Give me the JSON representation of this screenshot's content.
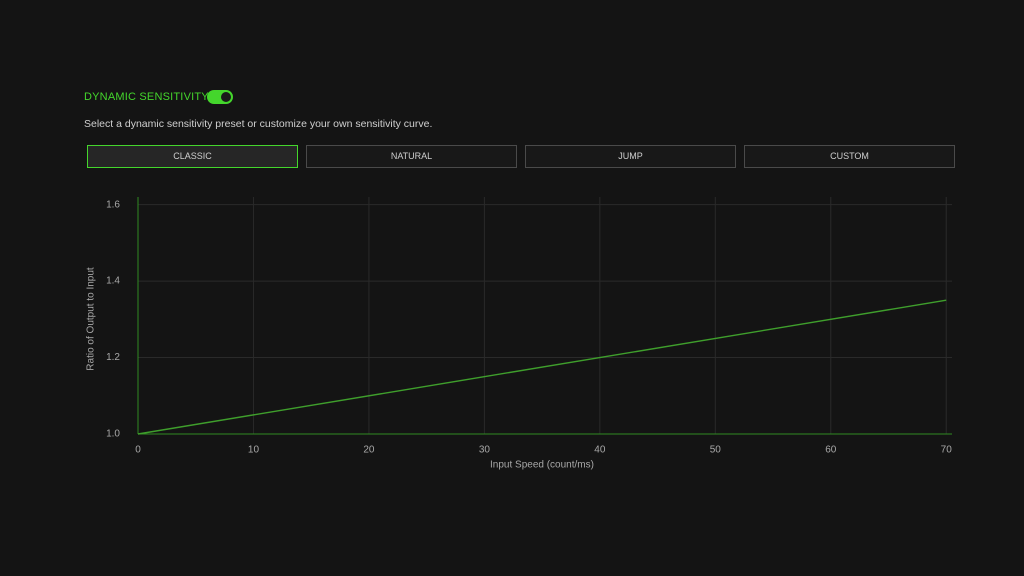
{
  "header": {
    "title": "DYNAMIC SENSITIVITY",
    "toggle_on": true
  },
  "description": "Select a dynamic sensitivity preset or customize your own sensitivity curve.",
  "presets": {
    "options": [
      "CLASSIC",
      "NATURAL",
      "JUMP",
      "CUSTOM"
    ],
    "selected": 0
  },
  "chart_data": {
    "type": "line",
    "x_label": "Input Speed (count/ms)",
    "y_label": "Ratio of Output to Input",
    "x": [
      0,
      70
    ],
    "values": [
      1.0,
      1.35
    ],
    "color": "#3f9f2c",
    "xlim": [
      0,
      70.5
    ],
    "ylim": [
      1.0,
      1.62
    ],
    "xticks": [
      0,
      10,
      20,
      30,
      40,
      50,
      60,
      70
    ],
    "yticks": [
      {
        "value": 1,
        "label": "1.0"
      },
      1.2,
      1.4,
      1.6
    ],
    "grid": true,
    "axis_color": "#2f8a22"
  }
}
